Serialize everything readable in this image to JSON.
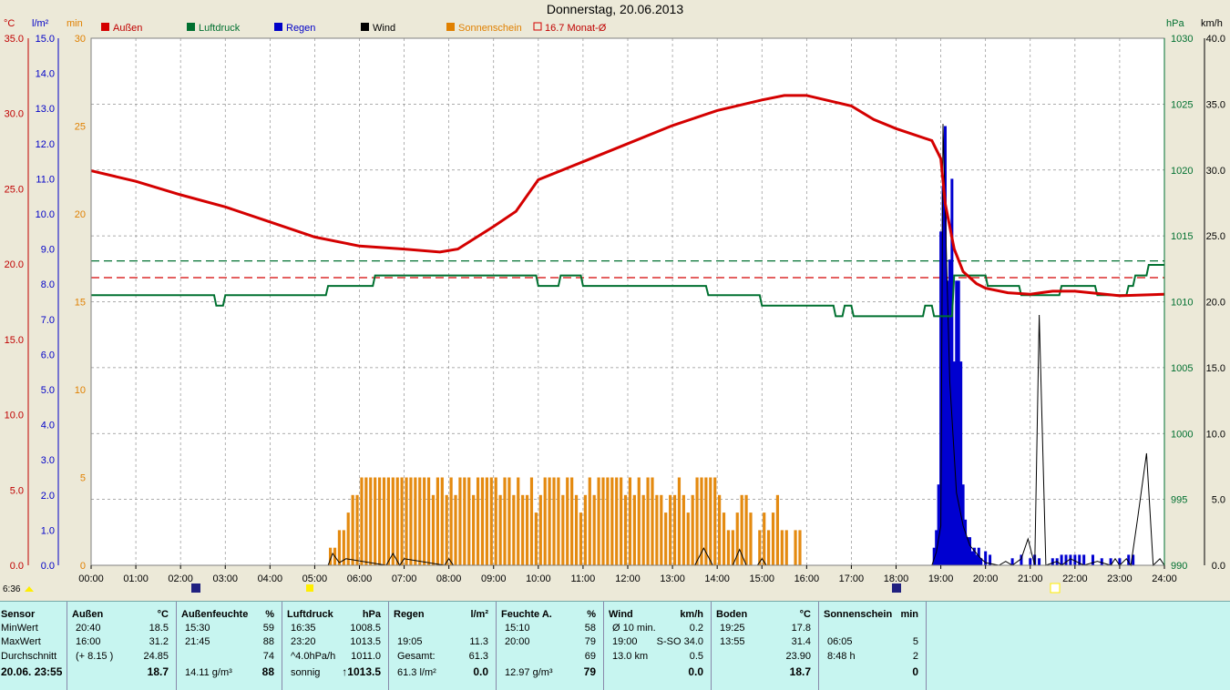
{
  "chart_data": {
    "type": "line",
    "title": "Donnerstag, 20.06.2013",
    "legend": [
      {
        "name": "Außen",
        "color": "#d40000"
      },
      {
        "name": "Luftdruck",
        "color": "#007030"
      },
      {
        "name": "Regen",
        "color": "#0000c8"
      },
      {
        "name": "Wind",
        "color": "#000000"
      },
      {
        "name": "Sonnenschein",
        "color": "#e08000"
      },
      {
        "name": "16.7 Monat-Ø",
        "color": "#d40000"
      }
    ],
    "x_ticks": [
      "00:00",
      "01:00",
      "02:00",
      "03:00",
      "04:00",
      "05:00",
      "06:00",
      "07:00",
      "08:00",
      "09:00",
      "10:00",
      "11:00",
      "12:00",
      "13:00",
      "14:00",
      "15:00",
      "16:00",
      "17:00",
      "18:00",
      "19:00",
      "20:00",
      "21:00",
      "22:00",
      "23:00",
      "24:00"
    ],
    "axes": {
      "temp": {
        "unit": "°C",
        "ticks": [
          "0.0",
          "5.0",
          "10.0",
          "15.0",
          "20.0",
          "25.0",
          "30.0",
          "35.0"
        ],
        "ylim": [
          0,
          35
        ]
      },
      "rain": {
        "unit": "l/m²",
        "ticks": [
          "0.0",
          "1.0",
          "2.0",
          "3.0",
          "4.0",
          "5.0",
          "6.0",
          "7.0",
          "8.0",
          "9.0",
          "10.0",
          "11.0",
          "12.0",
          "13.0",
          "14.0",
          "15.0"
        ],
        "ylim": [
          0,
          15
        ]
      },
      "sun": {
        "unit": "min",
        "ticks": [
          "0",
          "5",
          "10",
          "15",
          "20",
          "25",
          "30"
        ],
        "ylim": [
          0,
          30
        ]
      },
      "pressure": {
        "unit": "hPa",
        "ticks": [
          "990",
          "995",
          "1000",
          "1005",
          "1010",
          "1015",
          "1020",
          "1025",
          "1030"
        ],
        "ylim": [
          990,
          1030
        ]
      },
      "wind": {
        "unit": "km/h",
        "ticks": [
          "0.0",
          "5.0",
          "10.0",
          "15.0",
          "20.0",
          "25.0",
          "30.0",
          "35.0",
          "40.0"
        ],
        "ylim": [
          0,
          40
        ]
      }
    },
    "series": [
      {
        "name": "Außen",
        "unit": "°C",
        "x": [
          0,
          1,
          2,
          3,
          4,
          5,
          6,
          7,
          7.8,
          8.2,
          9,
          9.5,
          10,
          11,
          12,
          13,
          14,
          15,
          15.5,
          16,
          17,
          17.5,
          18,
          18.8,
          19,
          19.1,
          19.3,
          19.5,
          19.8,
          20,
          20.5,
          21,
          21.5,
          22,
          23,
          24
        ],
        "y": [
          26.2,
          25.5,
          24.6,
          23.8,
          22.8,
          21.8,
          21.2,
          21.0,
          20.8,
          21.0,
          22.5,
          23.5,
          25.6,
          26.8,
          28.0,
          29.2,
          30.2,
          30.9,
          31.2,
          31.2,
          30.5,
          29.6,
          29.0,
          28.2,
          27.0,
          24.0,
          21.0,
          19.5,
          18.7,
          18.4,
          18.1,
          18.0,
          18.2,
          18.2,
          17.9,
          18.0
        ]
      },
      {
        "name": "Luftdruck",
        "unit": "hPa",
        "x": [
          0,
          2.75,
          2.8,
          2.95,
          3,
          5.25,
          5.3,
          6.3,
          6.35,
          9.95,
          10,
          10.45,
          10.5,
          10.95,
          11,
          13.75,
          13.8,
          14.95,
          15,
          15.95,
          16,
          16.6,
          16.65,
          16.8,
          16.85,
          17,
          17.05,
          18.6,
          18.65,
          18.8,
          18.85,
          19.25,
          19.3,
          20,
          20.05,
          20.75,
          20.8,
          21.65,
          21.7,
          22.45,
          22.5,
          23.15,
          23.2,
          23.3,
          23.35,
          23.6,
          23.65,
          24
        ],
        "y": [
          1010.5,
          1010.5,
          1009.7,
          1009.7,
          1010.5,
          1010.5,
          1011.2,
          1011.2,
          1012.0,
          1012.0,
          1011.2,
          1011.2,
          1012.0,
          1012.0,
          1011.2,
          1011.2,
          1010.5,
          1010.5,
          1009.7,
          1009.7,
          1009.7,
          1009.7,
          1008.9,
          1008.9,
          1009.7,
          1009.7,
          1008.9,
          1008.9,
          1009.7,
          1009.7,
          1008.9,
          1008.9,
          1012.0,
          1012.0,
          1011.2,
          1011.2,
          1010.5,
          1010.5,
          1011.2,
          1011.2,
          1010.5,
          1010.5,
          1011.2,
          1011.2,
          1012.0,
          1012.0,
          1012.8,
          1012.8
        ]
      },
      {
        "name": "Regen",
        "unit": "l/m²",
        "x": [
          18.85,
          18.9,
          18.95,
          19.0,
          19.05,
          19.1,
          19.15,
          19.2,
          19.25,
          19.3,
          19.35,
          19.4,
          19.45,
          19.5,
          19.55,
          19.6,
          19.65,
          19.7,
          19.75,
          19.8,
          19.85,
          19.9,
          20.0,
          20.1,
          20.6,
          20.8,
          21.0,
          21.1,
          21.2,
          21.5,
          21.6,
          21.7,
          21.8,
          21.9,
          22.0,
          22.1,
          22.2,
          22.4,
          22.6,
          22.8,
          23.0,
          23.2,
          23.3
        ],
        "y": [
          0.5,
          1.0,
          2.3,
          9.5,
          10.8,
          12.5,
          8.1,
          8.7,
          11.0,
          5.8,
          8.1,
          8.1,
          5.8,
          2.3,
          1.3,
          0.8,
          0.8,
          0.4,
          0.5,
          0.3,
          0.5,
          0.2,
          0.4,
          0.3,
          0.2,
          0.3,
          0.2,
          0.3,
          0.2,
          0.2,
          0.2,
          0.3,
          0.3,
          0.3,
          0.3,
          0.3,
          0.3,
          0.3,
          0.2,
          0.2,
          0.2,
          0.3,
          0.3
        ]
      },
      {
        "name": "Wind",
        "unit": "km/h",
        "x": [
          0,
          5.3,
          5.4,
          5.55,
          5.7,
          6.6,
          6.75,
          6.9,
          7.0,
          7.9,
          8.0,
          8.1,
          13.5,
          13.7,
          13.9,
          14.35,
          14.5,
          14.65,
          14.9,
          15.0,
          15.1,
          18.8,
          18.9,
          19.0,
          19.05,
          19.2,
          19.35,
          19.5,
          19.65,
          19.9,
          20.0,
          20.3,
          20.45,
          20.6,
          20.8,
          20.95,
          21.1,
          21.2,
          21.35,
          21.6,
          21.7,
          21.9,
          22.2,
          22.5,
          22.8,
          22.9,
          23.0,
          23.15,
          23.25,
          23.4,
          23.6,
          23.75,
          23.9,
          24
        ],
        "y": [
          0,
          0,
          0.9,
          0.2,
          0.5,
          0,
          0.9,
          0,
          0.5,
          0,
          0.5,
          0,
          0,
          1.3,
          0,
          0,
          1.2,
          0,
          0,
          0.5,
          0,
          0,
          1.0,
          3.0,
          33.5,
          14.0,
          5.5,
          3.0,
          1.5,
          0.5,
          0.2,
          0,
          0.3,
          0,
          0.5,
          2.0,
          0,
          19.0,
          0,
          0.3,
          0,
          0.5,
          0,
          0.3,
          0,
          0.5,
          0,
          0.5,
          0,
          3.5,
          8.5,
          0,
          0.5,
          0
        ]
      },
      {
        "name": "Sonnenschein",
        "unit": "min",
        "x": [
          5.35,
          5.45,
          5.55,
          5.65,
          5.75,
          5.85,
          5.95,
          6.05,
          6.15,
          6.25,
          6.35,
          6.45,
          6.55,
          6.65,
          6.75,
          6.85,
          6.95,
          7.05,
          7.15,
          7.25,
          7.35,
          7.45,
          7.55,
          7.65,
          7.75,
          7.85,
          7.95,
          8.05,
          8.15,
          8.25,
          8.35,
          8.45,
          8.55,
          8.65,
          8.75,
          8.85,
          8.95,
          9.05,
          9.15,
          9.25,
          9.35,
          9.45,
          9.55,
          9.65,
          9.75,
          9.85,
          9.95,
          10.05,
          10.15,
          10.25,
          10.35,
          10.45,
          10.55,
          10.65,
          10.75,
          10.85,
          10.95,
          11.05,
          11.15,
          11.25,
          11.35,
          11.45,
          11.55,
          11.65,
          11.75,
          11.85,
          11.95,
          12.05,
          12.15,
          12.25,
          12.35,
          12.45,
          12.55,
          12.65,
          12.75,
          12.85,
          12.95,
          13.05,
          13.15,
          13.25,
          13.35,
          13.45,
          13.55,
          13.65,
          13.75,
          13.85,
          13.95,
          14.05,
          14.15,
          14.25,
          14.35,
          14.45,
          14.55,
          14.65,
          14.75,
          14.85,
          14.95,
          15.05,
          15.15,
          15.25,
          15.35,
          15.45,
          15.55,
          15.65,
          15.75,
          15.85
        ],
        "y": [
          1,
          1,
          2,
          2,
          3,
          4,
          4,
          5,
          5,
          5,
          5,
          5,
          5,
          5,
          5,
          5,
          5,
          5,
          5,
          5,
          5,
          5,
          5,
          4,
          5,
          5,
          4,
          5,
          4,
          5,
          5,
          5,
          4,
          5,
          5,
          5,
          5,
          5,
          4,
          5,
          5,
          4,
          5,
          4,
          4,
          5,
          3,
          4,
          5,
          5,
          5,
          5,
          4,
          5,
          5,
          4,
          3,
          4,
          5,
          4,
          5,
          5,
          5,
          5,
          5,
          5,
          4,
          5,
          4,
          5,
          4,
          5,
          5,
          4,
          4,
          3,
          4,
          4,
          5,
          4,
          3,
          4,
          5,
          5,
          5,
          5,
          5,
          4,
          3,
          2,
          2,
          3,
          4,
          4,
          3,
          0,
          2,
          3,
          2,
          3,
          4,
          2,
          2,
          0,
          2,
          2
        ]
      }
    ],
    "reference_lines": [
      {
        "name": "16.7 Monat-Ø",
        "axis": "temp",
        "value": 19.1,
        "color": "#d40000"
      },
      {
        "name": "pressure-mean",
        "axis": "pressure",
        "value": 1013.1,
        "color": "#007030"
      }
    ],
    "grid": true,
    "legend_position": "top"
  },
  "below_axis": {
    "sunrise": "6:36"
  },
  "stats": {
    "rows": [
      "Sensor",
      "MinWert",
      "MaxWert",
      "Durchschnitt",
      "20.06. 23:55"
    ],
    "columns": [
      {
        "title": "Außen",
        "unit": "°C",
        "cells": [
          [
            "20:40",
            "18.5"
          ],
          [
            "16:00",
            "31.2"
          ],
          [
            "(+ 8.15 )",
            "24.85"
          ],
          [
            "",
            "18.7"
          ]
        ]
      },
      {
        "title": "Außenfeuchte",
        "unit": "%",
        "cells": [
          [
            "15:30",
            "59"
          ],
          [
            "21:45",
            "88"
          ],
          [
            "",
            "74"
          ],
          [
            "14.11 g/m³",
            "88"
          ]
        ]
      },
      {
        "title": "Luftdruck",
        "unit": "hPa",
        "cells": [
          [
            "16:35",
            "1008.5"
          ],
          [
            "23:20",
            "1013.5"
          ],
          [
            "^4.0hPa/h",
            "1011.0"
          ],
          [
            "sonnig",
            "↑1013.5"
          ]
        ]
      },
      {
        "title": "Regen",
        "unit": "l/m²",
        "cells": [
          [
            "",
            ""
          ],
          [
            "19:05",
            "11.3"
          ],
          [
            "Gesamt:",
            "61.3"
          ],
          [
            "61.3 l/m²",
            "0.0"
          ]
        ]
      },
      {
        "title": "Feuchte A.",
        "unit": "%",
        "cells": [
          [
            "15:10",
            "58"
          ],
          [
            "20:00",
            "79"
          ],
          [
            "",
            "69"
          ],
          [
            "12.97 g/m³",
            "79"
          ]
        ]
      },
      {
        "title": "Wind",
        "unit": "km/h",
        "cells": [
          [
            "Ø 10 min.",
            "0.2"
          ],
          [
            "19:00",
            "S-SO 34.0"
          ],
          [
            "13.0 km",
            "0.5"
          ],
          [
            "",
            "0.0"
          ]
        ]
      },
      {
        "title": "Boden",
        "unit": "°C",
        "cells": [
          [
            "19:25",
            "17.8"
          ],
          [
            "13:55",
            "31.4"
          ],
          [
            "",
            "23.90"
          ],
          [
            "",
            "18.7"
          ]
        ]
      },
      {
        "title": "Sonnenschein",
        "unit": "min",
        "cells": [
          [
            "",
            ""
          ],
          [
            "06:05",
            "5"
          ],
          [
            "8:48 h",
            "2"
          ],
          [
            "",
            "0"
          ]
        ]
      }
    ]
  }
}
